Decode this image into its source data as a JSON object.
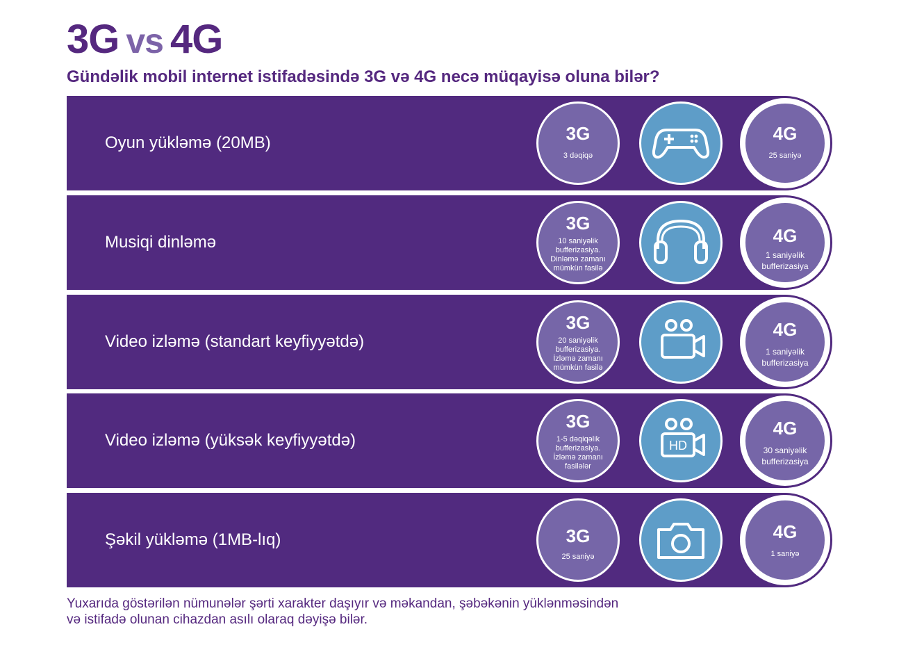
{
  "title": {
    "left": "3G",
    "vs": "vs",
    "right": "4G"
  },
  "subtitle": "Gündəlik mobil internet istifadəsində 3G və 4G necə müqayisə oluna bilər?",
  "rows": [
    {
      "label": "Oyun yükləmə (20MB)",
      "g3": "3G",
      "g3_note": "3 dəqiqə",
      "icon": "gamepad-icon",
      "g4": "4G",
      "g4_note": "25 saniyə"
    },
    {
      "label": "Musiqi dinləmə",
      "g3": "3G",
      "g3_note": "10 saniyəlik bufferizasiya. Dinləmə zamanı mümkün fasilə",
      "icon": "headphones-icon",
      "g4": "4G",
      "g4_note": "1 saniyəlik bufferizasiya"
    },
    {
      "label": "Video izləmə (standart keyfiyyətdə)",
      "g3": "3G",
      "g3_note": "20 saniyəlik bufferizasiya. İzləmə zamanı mümkün fasilə",
      "icon": "video-camera-icon",
      "g4": "4G",
      "g4_note": "1 saniyəlik bufferizasiya"
    },
    {
      "label": "Video izləmə (yüksək keyfiyyətdə)",
      "g3": "3G",
      "g3_note": "1-5 dəqiqəlik bufferizasiya. İzləmə zamanı fasilələr",
      "icon": "hd-video-camera-icon",
      "icon_text": "HD",
      "g4": "4G",
      "g4_note": "30 saniyəlik bufferizasiya"
    },
    {
      "label": "Şəkil yükləmə  (1MB-lıq)",
      "g3": "3G",
      "g3_note": "25 saniyə",
      "icon": "photo-camera-icon",
      "g4": "4G",
      "g4_note": "1 saniyə"
    }
  ],
  "footer": "Yuxarıda göstərilən nümunələr şərti xarakter daşıyır və məkandan, şəbəkənin yüklənməsindən və istifadə olunan cihazdan asılı olaraq dəyişə bilər.",
  "colors": {
    "band": "#512a7f",
    "circle_3g_4g": "#7666a8",
    "circle_icon": "#5e9dc8",
    "title": "#55287f",
    "vs": "#7c63a8"
  }
}
